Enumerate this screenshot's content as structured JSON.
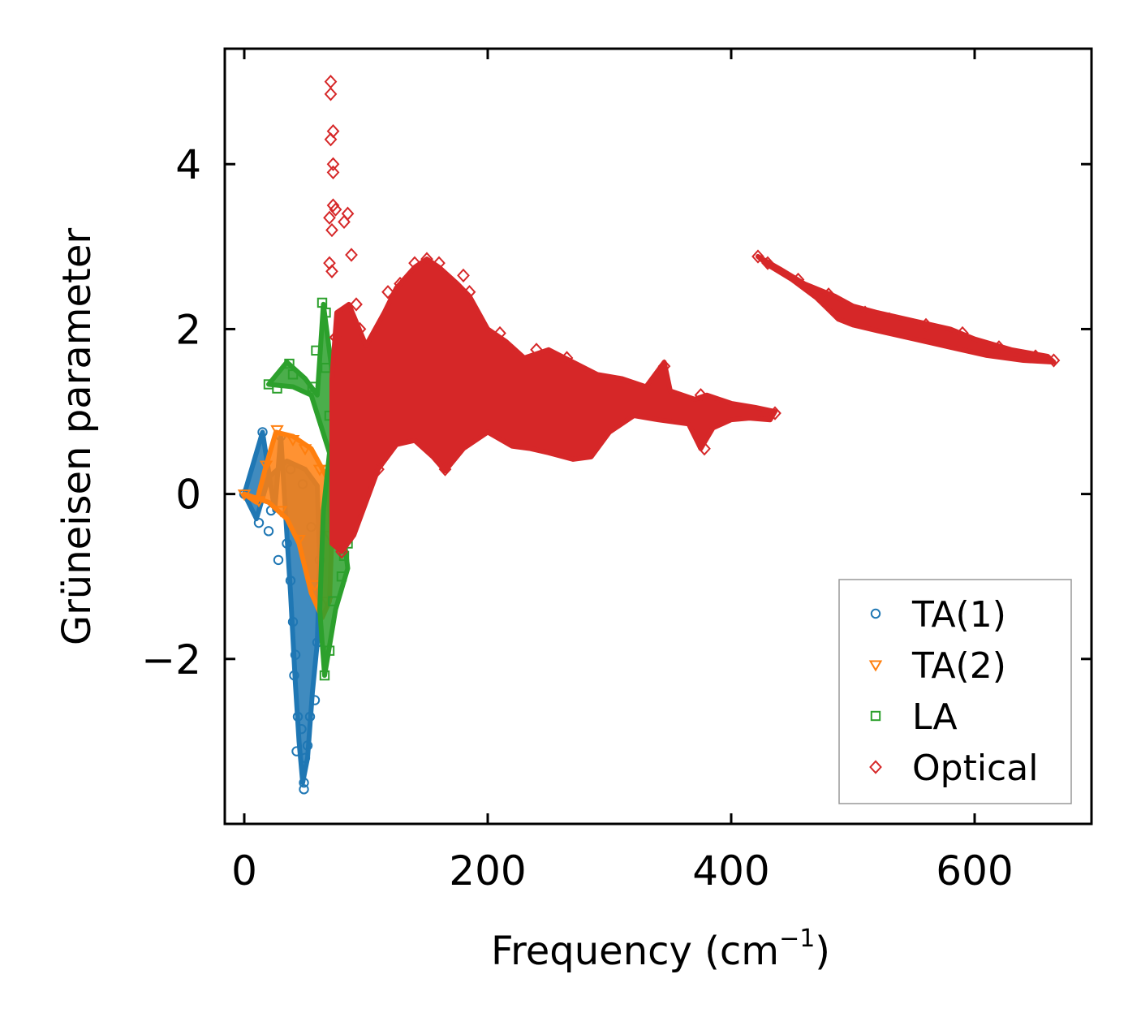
{
  "chart_data": {
    "type": "scatter",
    "title": "",
    "xlabel": "Frequency (cm",
    "xlabel_sup": "−1",
    "xlabel_close": ")",
    "ylabel": "Grüneisen parameter",
    "xlim": [
      -16,
      696
    ],
    "ylim": [
      -4.0,
      5.4
    ],
    "x_ticks": [
      0,
      200,
      400,
      600
    ],
    "x_tick_labels": [
      "0",
      "200",
      "400",
      "600"
    ],
    "y_ticks": [
      -2,
      0,
      2,
      4
    ],
    "y_tick_labels": [
      "−2",
      "0",
      "2",
      "4"
    ],
    "grid": false,
    "legend_position": "lower-right",
    "series": [
      {
        "name": "TA(1)",
        "marker": "circle",
        "color": "#1f77b4",
        "outline": [
          [
            0,
            0
          ],
          [
            15,
            0.75
          ],
          [
            25,
            -0.2
          ],
          [
            30,
            0.7
          ],
          [
            38,
            -1.2
          ],
          [
            42,
            -2.3
          ],
          [
            45,
            -3.0
          ],
          [
            48,
            -3.5
          ],
          [
            52,
            -3.2
          ],
          [
            56,
            -2.4
          ],
          [
            60,
            -1.8
          ],
          [
            62,
            -0.8
          ],
          [
            60,
            0.1
          ],
          [
            50,
            0.3
          ],
          [
            35,
            0.4
          ],
          [
            20,
            0.2
          ],
          [
            10,
            -0.3
          ],
          [
            0,
            0
          ]
        ],
        "points": [
          [
            0,
            0
          ],
          [
            15,
            0.75
          ],
          [
            30,
            0.7
          ],
          [
            12,
            -0.35
          ],
          [
            20,
            -0.45
          ],
          [
            22,
            -0.2
          ],
          [
            28,
            -0.8
          ],
          [
            35,
            -0.6
          ],
          [
            38,
            -1.05
          ],
          [
            40,
            -1.55
          ],
          [
            42,
            -1.95
          ],
          [
            41,
            -2.2
          ],
          [
            44,
            -2.7
          ],
          [
            43,
            -3.12
          ],
          [
            47,
            -2.85
          ],
          [
            49,
            -3.5
          ],
          [
            49,
            -3.58
          ],
          [
            50,
            -3.2
          ],
          [
            52,
            -3.05
          ],
          [
            54,
            -2.7
          ],
          [
            58,
            -2.5
          ],
          [
            60,
            -1.8
          ],
          [
            62,
            -0.8
          ],
          [
            55,
            -0.4
          ],
          [
            48,
            0.12
          ],
          [
            38,
            0.3
          ]
        ]
      },
      {
        "name": "TA(2)",
        "marker": "triangle-down",
        "color": "#ff7f0e",
        "outline": [
          [
            0,
            0
          ],
          [
            10,
            -0.1
          ],
          [
            18,
            0.35
          ],
          [
            26,
            0.75
          ],
          [
            40,
            0.7
          ],
          [
            55,
            0.55
          ],
          [
            68,
            0.2
          ],
          [
            72,
            -0.5
          ],
          [
            70,
            -1.3
          ],
          [
            64,
            -1.5
          ],
          [
            55,
            -1.2
          ],
          [
            45,
            -0.6
          ],
          [
            35,
            -0.3
          ],
          [
            20,
            -0.1
          ],
          [
            0,
            0
          ]
        ],
        "points": [
          [
            0,
            0
          ],
          [
            12,
            -0.08
          ],
          [
            18,
            0.35
          ],
          [
            27,
            0.78
          ],
          [
            40,
            0.66
          ],
          [
            50,
            0.55
          ],
          [
            62,
            0.3
          ],
          [
            70,
            -0.5
          ],
          [
            68,
            -1.3
          ],
          [
            58,
            -1.1
          ],
          [
            45,
            -0.55
          ],
          [
            30,
            -0.2
          ]
        ]
      },
      {
        "name": "LA",
        "marker": "square",
        "color": "#2ca02c",
        "outline": [
          [
            20,
            1.33
          ],
          [
            35,
            1.6
          ],
          [
            50,
            1.4
          ],
          [
            60,
            1.2
          ],
          [
            65,
            2.3
          ],
          [
            72,
            1.5
          ],
          [
            76,
            0.5
          ],
          [
            80,
            -0.3
          ],
          [
            85,
            -0.9
          ],
          [
            75,
            -1.4
          ],
          [
            66,
            -2.2
          ],
          [
            62,
            -1.4
          ],
          [
            65,
            -0.2
          ],
          [
            70,
            0.5
          ],
          [
            55,
            1.2
          ],
          [
            40,
            1.3
          ],
          [
            20,
            1.33
          ]
        ],
        "points": [
          [
            20,
            1.33
          ],
          [
            27,
            1.28
          ],
          [
            37,
            1.58
          ],
          [
            40,
            1.45
          ],
          [
            64,
            2.32
          ],
          [
            67,
            2.2
          ],
          [
            59,
            1.74
          ],
          [
            67,
            1.53
          ],
          [
            56,
            1.3
          ],
          [
            70,
            0.95
          ],
          [
            76,
            0.4
          ],
          [
            82,
            -0.75
          ],
          [
            85,
            -0.6
          ],
          [
            80,
            -1.0
          ],
          [
            73,
            -1.3
          ],
          [
            70,
            -1.9
          ],
          [
            66,
            -2.2
          ]
        ]
      },
      {
        "name": "Optical",
        "marker": "diamond",
        "color": "#d62728",
        "outline": [
          [
            72,
            -0.6
          ],
          [
            72,
            1.4
          ],
          [
            76,
            2.2
          ],
          [
            86,
            2.3
          ],
          [
            100,
            1.8
          ],
          [
            115,
            2.2
          ],
          [
            125,
            2.5
          ],
          [
            140,
            2.75
          ],
          [
            150,
            2.85
          ],
          [
            160,
            2.75
          ],
          [
            175,
            2.55
          ],
          [
            185,
            2.4
          ],
          [
            200,
            2.0
          ],
          [
            215,
            1.85
          ],
          [
            230,
            1.65
          ],
          [
            250,
            1.75
          ],
          [
            270,
            1.6
          ],
          [
            290,
            1.45
          ],
          [
            310,
            1.4
          ],
          [
            330,
            1.3
          ],
          [
            345,
            1.6
          ],
          [
            350,
            1.25
          ],
          [
            370,
            1.15
          ],
          [
            380,
            1.2
          ],
          [
            400,
            1.1
          ],
          [
            420,
            1.05
          ],
          [
            436,
            1.0
          ],
          [
            432,
            0.9
          ],
          [
            415,
            0.92
          ],
          [
            400,
            0.9
          ],
          [
            385,
            0.8
          ],
          [
            375,
            0.55
          ],
          [
            365,
            0.85
          ],
          [
            340,
            0.9
          ],
          [
            320,
            0.95
          ],
          [
            300,
            0.75
          ],
          [
            285,
            0.45
          ],
          [
            270,
            0.42
          ],
          [
            250,
            0.5
          ],
          [
            235,
            0.55
          ],
          [
            220,
            0.58
          ],
          [
            200,
            0.75
          ],
          [
            180,
            0.55
          ],
          [
            165,
            0.28
          ],
          [
            155,
            0.45
          ],
          [
            140,
            0.65
          ],
          [
            125,
            0.6
          ],
          [
            110,
            0.3
          ],
          [
            100,
            -0.1
          ],
          [
            90,
            -0.5
          ],
          [
            80,
            -0.7
          ],
          [
            72,
            -0.6
          ]
        ],
        "outline2": [
          [
            422,
            2.88
          ],
          [
            440,
            2.73
          ],
          [
            460,
            2.55
          ],
          [
            485,
            2.4
          ],
          [
            500,
            2.28
          ],
          [
            520,
            2.2
          ],
          [
            550,
            2.1
          ],
          [
            580,
            2.0
          ],
          [
            600,
            1.88
          ],
          [
            630,
            1.75
          ],
          [
            660,
            1.67
          ],
          [
            665,
            1.6
          ],
          [
            640,
            1.62
          ],
          [
            610,
            1.68
          ],
          [
            580,
            1.78
          ],
          [
            550,
            1.88
          ],
          [
            520,
            1.98
          ],
          [
            500,
            2.05
          ],
          [
            488,
            2.12
          ],
          [
            470,
            2.38
          ],
          [
            450,
            2.6
          ],
          [
            430,
            2.78
          ],
          [
            422,
            2.88
          ]
        ],
        "points": [
          [
            71,
            5.0
          ],
          [
            71,
            4.85
          ],
          [
            73,
            4.4
          ],
          [
            71,
            4.3
          ],
          [
            73,
            4.0
          ],
          [
            73,
            3.9
          ],
          [
            70,
            3.35
          ],
          [
            73,
            3.5
          ],
          [
            75,
            3.45
          ],
          [
            72,
            3.2
          ],
          [
            70,
            2.8
          ],
          [
            72,
            2.7
          ],
          [
            85,
            3.4
          ],
          [
            82,
            3.3
          ],
          [
            88,
            2.9
          ],
          [
            75,
            1.9
          ],
          [
            92,
            2.3
          ],
          [
            95,
            2.0
          ],
          [
            100,
            1.75
          ],
          [
            118,
            2.45
          ],
          [
            128,
            2.55
          ],
          [
            140,
            2.8
          ],
          [
            150,
            2.85
          ],
          [
            160,
            2.8
          ],
          [
            180,
            2.65
          ],
          [
            185,
            2.45
          ],
          [
            210,
            1.95
          ],
          [
            240,
            1.75
          ],
          [
            265,
            1.65
          ],
          [
            345,
            1.55
          ],
          [
            375,
            1.2
          ],
          [
            378,
            0.55
          ],
          [
            165,
            0.3
          ],
          [
            110,
            0.3
          ],
          [
            80,
            -0.7
          ],
          [
            436,
            0.98
          ],
          [
            422,
            2.88
          ],
          [
            430,
            2.8
          ],
          [
            455,
            2.6
          ],
          [
            480,
            2.42
          ],
          [
            510,
            2.2
          ],
          [
            530,
            2.12
          ],
          [
            560,
            2.05
          ],
          [
            590,
            1.95
          ],
          [
            620,
            1.78
          ],
          [
            650,
            1.67
          ],
          [
            665,
            1.62
          ]
        ]
      }
    ]
  }
}
